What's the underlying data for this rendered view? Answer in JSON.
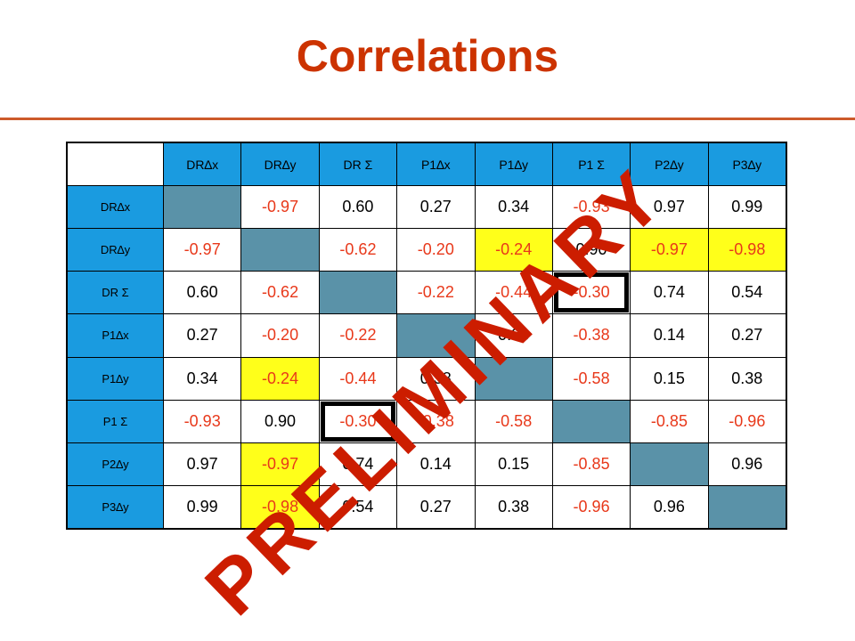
{
  "title": "Correlations",
  "watermark": "PRELIMINARY",
  "colors": {
    "title": "#cc3300",
    "header_bg": "#1a9be0",
    "diagonal_bg": "#5a92a8",
    "highlight_bg": "#ffff1a",
    "negative_text": "#e8381a",
    "watermark": "#cc1d00"
  },
  "columns": [
    "DR∆x",
    "DR∆y",
    "DR Σ",
    "P1∆x",
    "P1∆y",
    "P1 Σ",
    "P2∆y",
    "P3∆y"
  ],
  "rows": [
    {
      "label": "DR∆x",
      "cells": [
        {
          "v": "",
          "diag": true
        },
        {
          "v": "-0.97"
        },
        {
          "v": "0.60"
        },
        {
          "v": "0.27"
        },
        {
          "v": "0.34"
        },
        {
          "v": "-0.93"
        },
        {
          "v": "0.97"
        },
        {
          "v": "0.99"
        }
      ]
    },
    {
      "label": "DR∆y",
      "cells": [
        {
          "v": "-0.97"
        },
        {
          "v": "",
          "diag": true
        },
        {
          "v": "-0.62"
        },
        {
          "v": "-0.20"
        },
        {
          "v": "-0.24",
          "hl": true
        },
        {
          "v": "0.90"
        },
        {
          "v": "-0.97",
          "hl": true
        },
        {
          "v": "-0.98",
          "hl": true
        }
      ]
    },
    {
      "label": "DR Σ",
      "cells": [
        {
          "v": "0.60"
        },
        {
          "v": "-0.62"
        },
        {
          "v": "",
          "diag": true
        },
        {
          "v": "-0.22"
        },
        {
          "v": "-0.44"
        },
        {
          "v": "-0.30",
          "boxed": true
        },
        {
          "v": "0.74"
        },
        {
          "v": "0.54"
        }
      ]
    },
    {
      "label": "P1∆x",
      "cells": [
        {
          "v": "0.27"
        },
        {
          "v": "-0.20"
        },
        {
          "v": "-0.22"
        },
        {
          "v": "",
          "diag": true
        },
        {
          "v": "0.38"
        },
        {
          "v": "-0.38"
        },
        {
          "v": "0.14"
        },
        {
          "v": "0.27"
        }
      ]
    },
    {
      "label": "P1∆y",
      "cells": [
        {
          "v": "0.34"
        },
        {
          "v": "-0.24",
          "hl": true
        },
        {
          "v": "-0.44"
        },
        {
          "v": "0.38"
        },
        {
          "v": "",
          "diag": true
        },
        {
          "v": "-0.58"
        },
        {
          "v": "0.15"
        },
        {
          "v": "0.38"
        }
      ]
    },
    {
      "label": "P1 Σ",
      "cells": [
        {
          "v": "-0.93"
        },
        {
          "v": "0.90"
        },
        {
          "v": "-0.30",
          "boxed": true
        },
        {
          "v": "-0.38"
        },
        {
          "v": "-0.58"
        },
        {
          "v": "",
          "diag": true
        },
        {
          "v": "-0.85"
        },
        {
          "v": "-0.96"
        }
      ]
    },
    {
      "label": "P2∆y",
      "cells": [
        {
          "v": "0.97"
        },
        {
          "v": "-0.97",
          "hl": true
        },
        {
          "v": "0.74"
        },
        {
          "v": "0.14"
        },
        {
          "v": "0.15"
        },
        {
          "v": "-0.85"
        },
        {
          "v": "",
          "diag": true
        },
        {
          "v": "0.96"
        }
      ]
    },
    {
      "label": "P3∆y",
      "cells": [
        {
          "v": "0.99"
        },
        {
          "v": "-0.98",
          "hl": true
        },
        {
          "v": "0.54"
        },
        {
          "v": "0.27"
        },
        {
          "v": "0.38"
        },
        {
          "v": "-0.96"
        },
        {
          "v": "0.96"
        },
        {
          "v": "",
          "diag": true
        }
      ]
    }
  ]
}
